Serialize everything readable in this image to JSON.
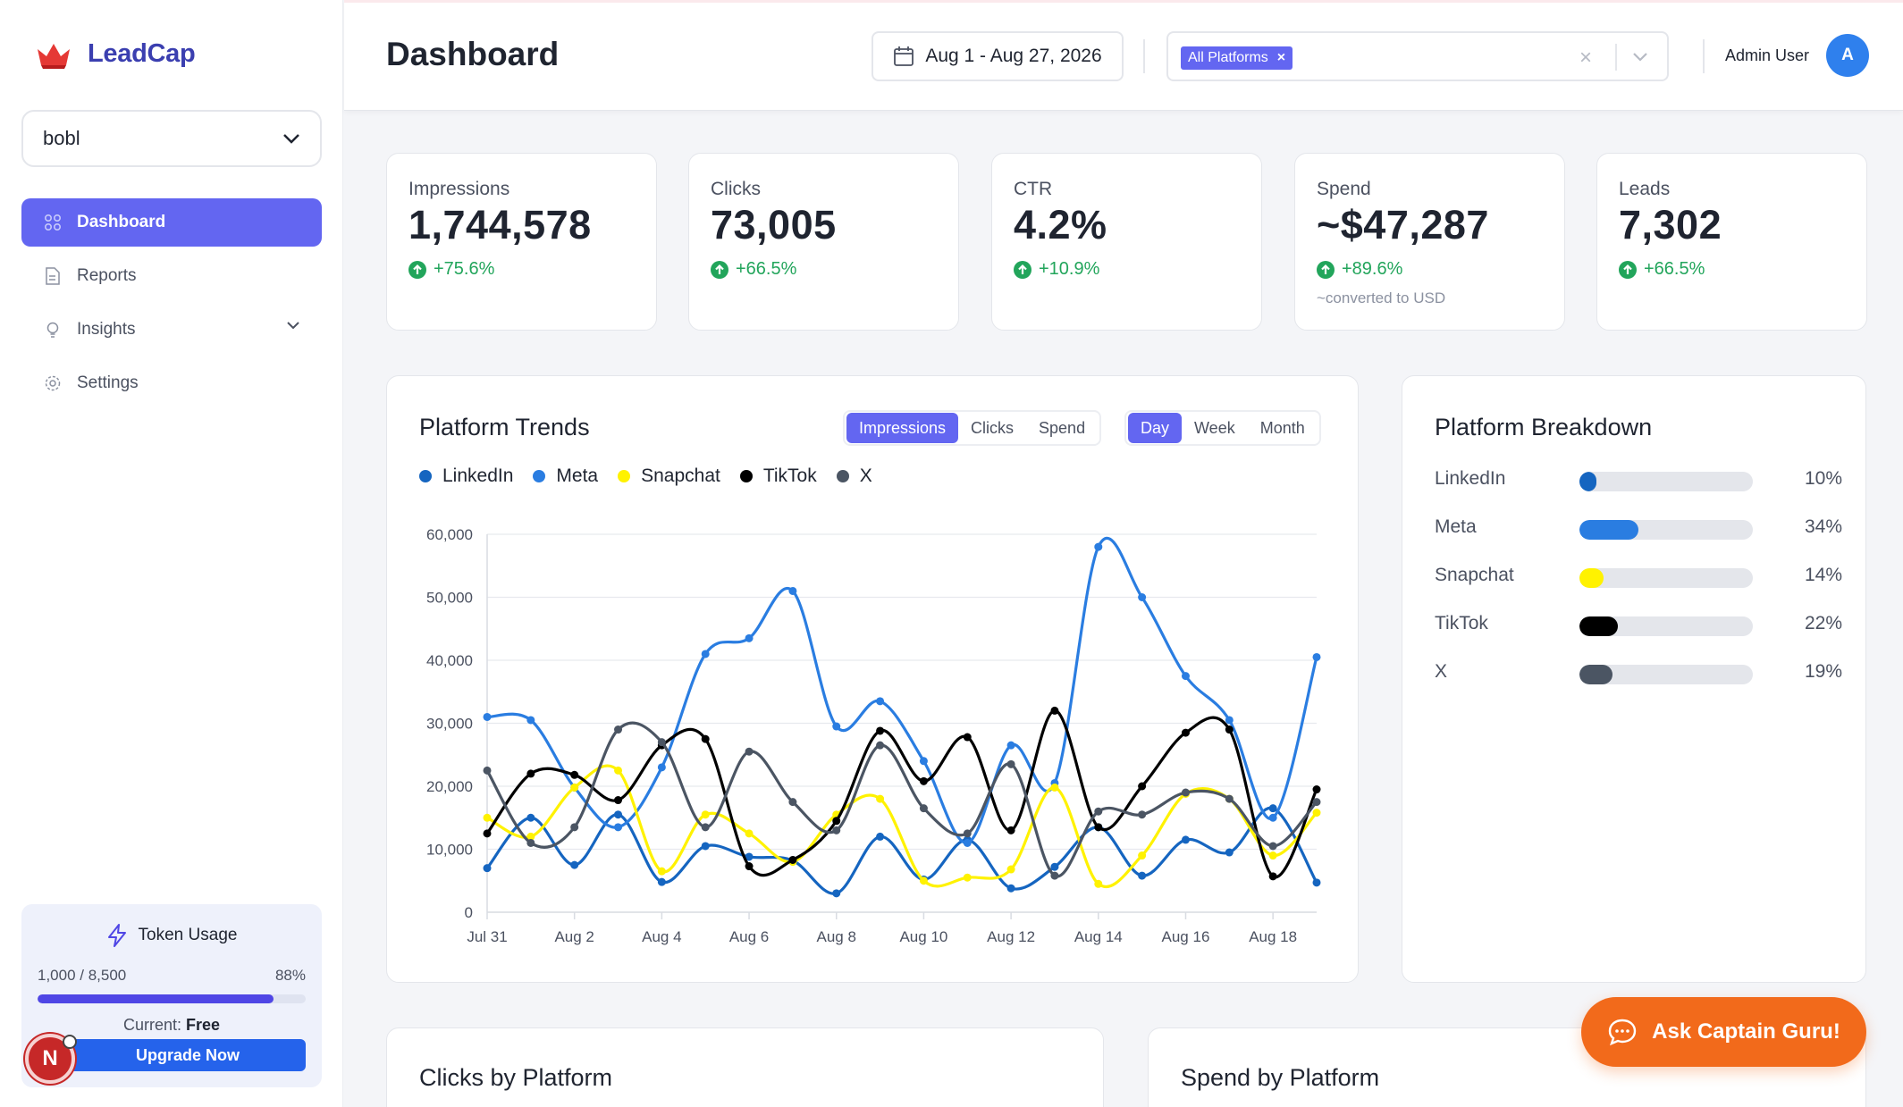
{
  "app": {
    "name": "LeadCap"
  },
  "sidebar": {
    "workspace": "bobl",
    "nav": [
      {
        "label": "Dashboard",
        "icon": "grid-icon",
        "active": true
      },
      {
        "label": "Reports",
        "icon": "document-icon"
      },
      {
        "label": "Insights",
        "icon": "lightbulb-icon",
        "expandable": true
      },
      {
        "label": "Settings",
        "icon": "gear-icon"
      }
    ],
    "token_usage": {
      "title": "Token Usage",
      "used_text": "1,000 / 8,500",
      "percent_text": "88%",
      "fill_fraction": 0.88,
      "plan_label": "Current:",
      "plan_name": "Free",
      "upgrade_label": "Upgrade Now"
    },
    "badge_letter": "N"
  },
  "header": {
    "title": "Dashboard",
    "date_range": "Aug 1 - Aug 27, 2026",
    "platform_chip": "All Platforms",
    "chip_remove": "×",
    "clear_symbol": "×",
    "user_name": "Admin User",
    "avatar_letter": "A"
  },
  "kpis": [
    {
      "label": "Impressions",
      "value": "1,744,578",
      "change": "+75.6%"
    },
    {
      "label": "Clicks",
      "value": "73,005",
      "change": "+66.5%"
    },
    {
      "label": "CTR",
      "value": "4.2%",
      "change": "+10.9%"
    },
    {
      "label": "Spend",
      "value": "~$47,287",
      "change": "+89.6%",
      "note": "~converted to USD"
    },
    {
      "label": "Leads",
      "value": "7,302",
      "change": "+66.5%"
    }
  ],
  "trends": {
    "title": "Platform Trends",
    "metric_tabs": [
      "Impressions",
      "Clicks",
      "Spend"
    ],
    "metric_active": "Impressions",
    "period_tabs": [
      "Day",
      "Week",
      "Month"
    ],
    "period_active": "Day"
  },
  "breakdown": {
    "title": "Platform Breakdown",
    "rows": [
      {
        "name": "LinkedIn",
        "pct_text": "10%",
        "fraction": 0.1,
        "color": "#1565c0"
      },
      {
        "name": "Meta",
        "pct_text": "34%",
        "fraction": 0.34,
        "color": "#2a7de1"
      },
      {
        "name": "Snapchat",
        "pct_text": "14%",
        "fraction": 0.14,
        "color": "#fff200"
      },
      {
        "name": "TikTok",
        "pct_text": "22%",
        "fraction": 0.22,
        "color": "#000000"
      },
      {
        "name": "X",
        "pct_text": "19%",
        "fraction": 0.19,
        "color": "#4b5563"
      }
    ]
  },
  "bottom_panels": {
    "clicks_title": "Clicks by Platform",
    "spend_title": "Spend by Platform"
  },
  "assistant": {
    "label": "Ask Captain Guru!"
  },
  "chart_data": {
    "type": "line",
    "title": "Platform Trends",
    "x": [
      "Jul 31",
      "Aug 1",
      "Aug 2",
      "Aug 3",
      "Aug 4",
      "Aug 5",
      "Aug 6",
      "Aug 7",
      "Aug 8",
      "Aug 9",
      "Aug 10",
      "Aug 11",
      "Aug 12",
      "Aug 13",
      "Aug 14",
      "Aug 15",
      "Aug 16",
      "Aug 17",
      "Aug 18",
      "Aug 19"
    ],
    "x_tick_labels": [
      "Jul 31",
      "Aug 2",
      "Aug 4",
      "Aug 6",
      "Aug 8",
      "Aug 10",
      "Aug 12",
      "Aug 14",
      "Aug 16",
      "Aug 18"
    ],
    "ylim": [
      0,
      60000
    ],
    "y_ticks": [
      0,
      10000,
      20000,
      30000,
      40000,
      50000,
      60000
    ],
    "y_tick_labels": [
      "0",
      "10,000",
      "20,000",
      "30,000",
      "40,000",
      "50,000",
      "60,000"
    ],
    "grid": true,
    "legend": "top-left",
    "series": [
      {
        "name": "LinkedIn",
        "color": "#1565c0",
        "values": [
          7000,
          15000,
          7500,
          15500,
          4800,
          10500,
          8800,
          8200,
          3000,
          12000,
          5200,
          11500,
          3800,
          7200,
          13500,
          5800,
          11500,
          9500,
          16500,
          4700
        ]
      },
      {
        "name": "Meta",
        "color": "#2a7de1",
        "values": [
          31000,
          30500,
          19800,
          13500,
          23000,
          41000,
          43500,
          51000,
          29500,
          33500,
          24000,
          11000,
          26500,
          20500,
          58000,
          50000,
          37500,
          30500,
          15000,
          40500
        ]
      },
      {
        "name": "Snapchat",
        "color": "#fff200",
        "values": [
          15000,
          12000,
          19800,
          22500,
          6500,
          15500,
          12500,
          8000,
          15500,
          18000,
          5000,
          5500,
          6800,
          19800,
          4500,
          9000,
          18800,
          18000,
          9000,
          15800
        ]
      },
      {
        "name": "TikTok",
        "color": "#000000",
        "values": [
          12500,
          22000,
          21800,
          17800,
          26500,
          27500,
          7300,
          8300,
          14500,
          28800,
          20800,
          27800,
          13000,
          32000,
          13500,
          20000,
          28500,
          29000,
          5700,
          19500
        ]
      },
      {
        "name": "X",
        "color": "#4b5563",
        "values": [
          22500,
          11000,
          13500,
          29000,
          27000,
          13500,
          25500,
          17500,
          13000,
          26500,
          16500,
          12500,
          23500,
          5800,
          16000,
          15500,
          19000,
          18000,
          10500,
          17500
        ]
      }
    ]
  }
}
